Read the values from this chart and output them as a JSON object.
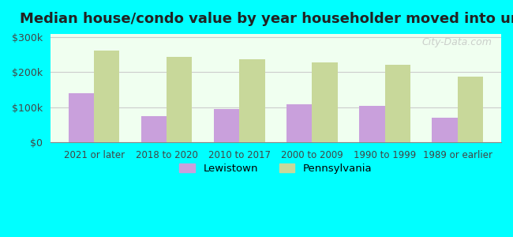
{
  "title": "Median house/condo value by year householder moved into unit",
  "categories": [
    "2021 or later",
    "2018 to 2020",
    "2010 to 2017",
    "2000 to 2009",
    "1990 to 1999",
    "1989 or earlier"
  ],
  "lewistown_values": [
    140000,
    75000,
    95000,
    108000,
    104000,
    70000
  ],
  "pennsylvania_values": [
    262000,
    245000,
    238000,
    228000,
    222000,
    188000
  ],
  "lewistown_color": "#c9a0dc",
  "pennsylvania_color": "#c8d89a",
  "background_color": "#00ffff",
  "plot_bg_start": "#f0fff0",
  "plot_bg_end": "#ffffff",
  "ylabel_ticks": [
    0,
    100000,
    200000,
    300000
  ],
  "ylabel_labels": [
    "$0",
    "$100k",
    "$200k",
    "$300k"
  ],
  "ylim": [
    0,
    310000
  ],
  "legend_lewistown": "Lewistown",
  "legend_pennsylvania": "Pennsylvania",
  "watermark": "City-Data.com"
}
